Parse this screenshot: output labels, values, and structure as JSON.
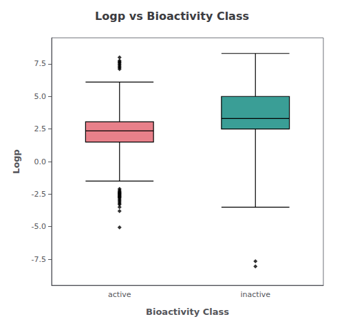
{
  "chart_data": {
    "type": "box",
    "title": "Logp vs Bioactivity Class",
    "xlabel": "Bioactivity Class",
    "ylabel": "Logp",
    "categories": [
      "active",
      "inactive"
    ],
    "boxes": [
      {
        "q1": 1.5,
        "median": 2.35,
        "q3": 3.05,
        "whisker_low": -1.5,
        "whisker_high": 6.1,
        "outliers": [
          -2.1,
          -2.2,
          -2.3,
          -2.35,
          -2.4,
          -2.45,
          -2.5,
          -2.55,
          -2.6,
          -2.65,
          -2.7,
          -2.75,
          -2.8,
          -2.9,
          -3.0,
          -3.1,
          -3.2,
          -3.3,
          -3.5,
          -3.8,
          -5.05,
          7.1,
          7.2,
          7.3,
          7.4,
          7.5,
          7.6,
          7.65,
          7.75,
          8.0
        ],
        "color": "#E8808A"
      },
      {
        "q1": 2.5,
        "median": 3.3,
        "q3": 5.0,
        "whisker_low": -3.5,
        "whisker_high": 8.3,
        "outliers": [
          -7.65,
          -8.05
        ],
        "color": "#3A9E96"
      }
    ],
    "ylim": [
      -9.5,
      9.5
    ],
    "yticks": [
      -7.5,
      {
        "value": -5.0,
        "label": "-5.0"
      },
      -2.5,
      {
        "value": 0.0,
        "label": "0.0"
      },
      2.5,
      {
        "value": 5.0,
        "label": "5.0"
      },
      7.5
    ],
    "grid": false
  }
}
